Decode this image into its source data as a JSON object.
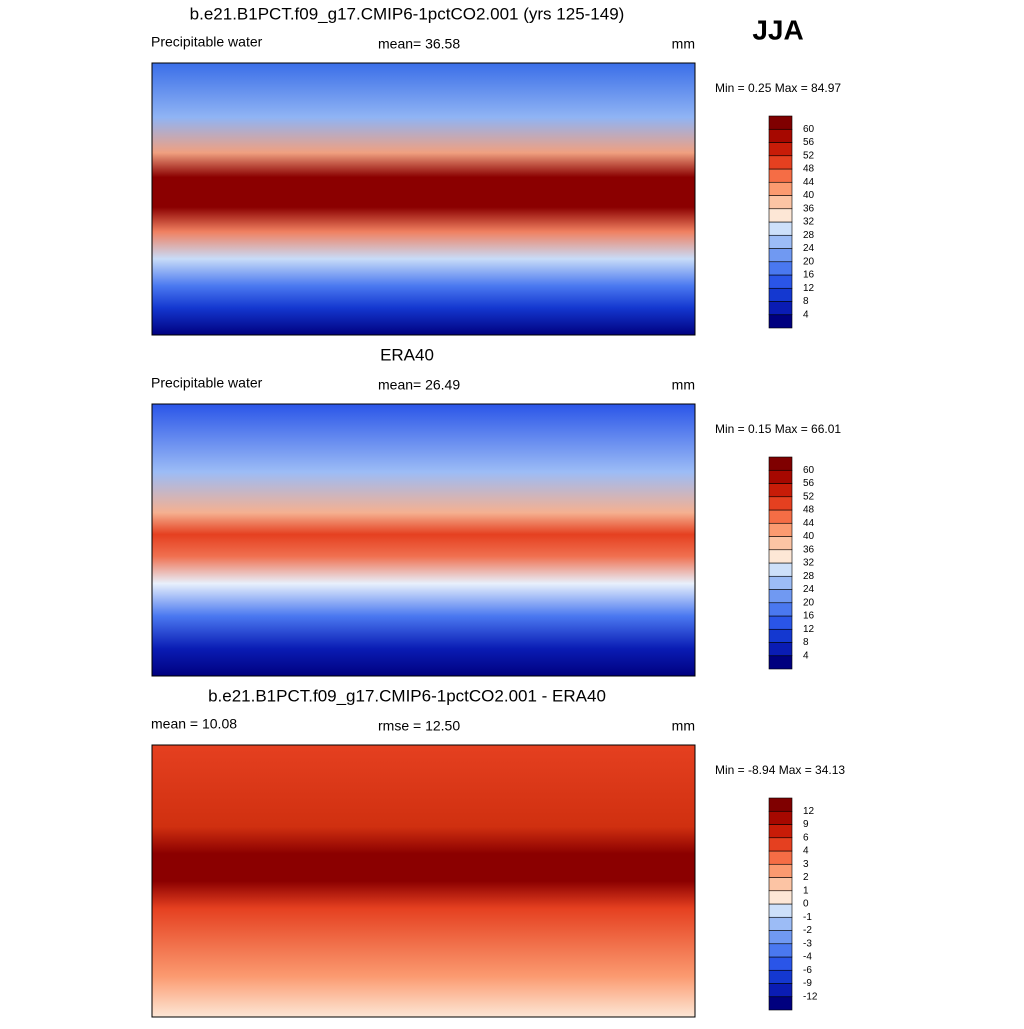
{
  "header": {
    "season": "JJA"
  },
  "panels": [
    {
      "title": "b.e21.B1PCT.f09_g17.CMIP6-1pctCO2.001 (yrs 125-149)",
      "left": "Precipitable water",
      "center": "mean=  36.58",
      "right": "mm",
      "minmax": "Min =   0.25 Max =  84.97",
      "levels": [
        4,
        8,
        12,
        16,
        20,
        24,
        28,
        32,
        36,
        40,
        44,
        48,
        52,
        56,
        60
      ]
    },
    {
      "title": "ERA40",
      "left": "Precipitable water",
      "center": "mean=  26.49",
      "right": "mm",
      "minmax": "Min =   0.15 Max =  66.01",
      "levels": [
        4,
        8,
        12,
        16,
        20,
        24,
        28,
        32,
        36,
        40,
        44,
        48,
        52,
        56,
        60
      ]
    },
    {
      "title": "b.e21.B1PCT.f09_g17.CMIP6-1pctCO2.001 - ERA40",
      "left": "mean =  10.08",
      "center": "rmse =  12.50",
      "right": "mm",
      "minmax": "Min =  -8.94 Max =  34.13",
      "levels": [
        -12,
        -9,
        -6,
        -4,
        -3,
        -2,
        -1,
        0,
        1,
        2,
        3,
        4,
        6,
        9,
        12
      ]
    }
  ],
  "colors": [
    "#00007f",
    "#0a1cb4",
    "#1438d0",
    "#2a55e8",
    "#4a78f0",
    "#7099f2",
    "#9cbcf6",
    "#cde0fa",
    "#fde7d6",
    "#fcc4a4",
    "#fb9a70",
    "#f56d45",
    "#e54020",
    "#c81c08",
    "#a60800",
    "#7f0000"
  ]
}
